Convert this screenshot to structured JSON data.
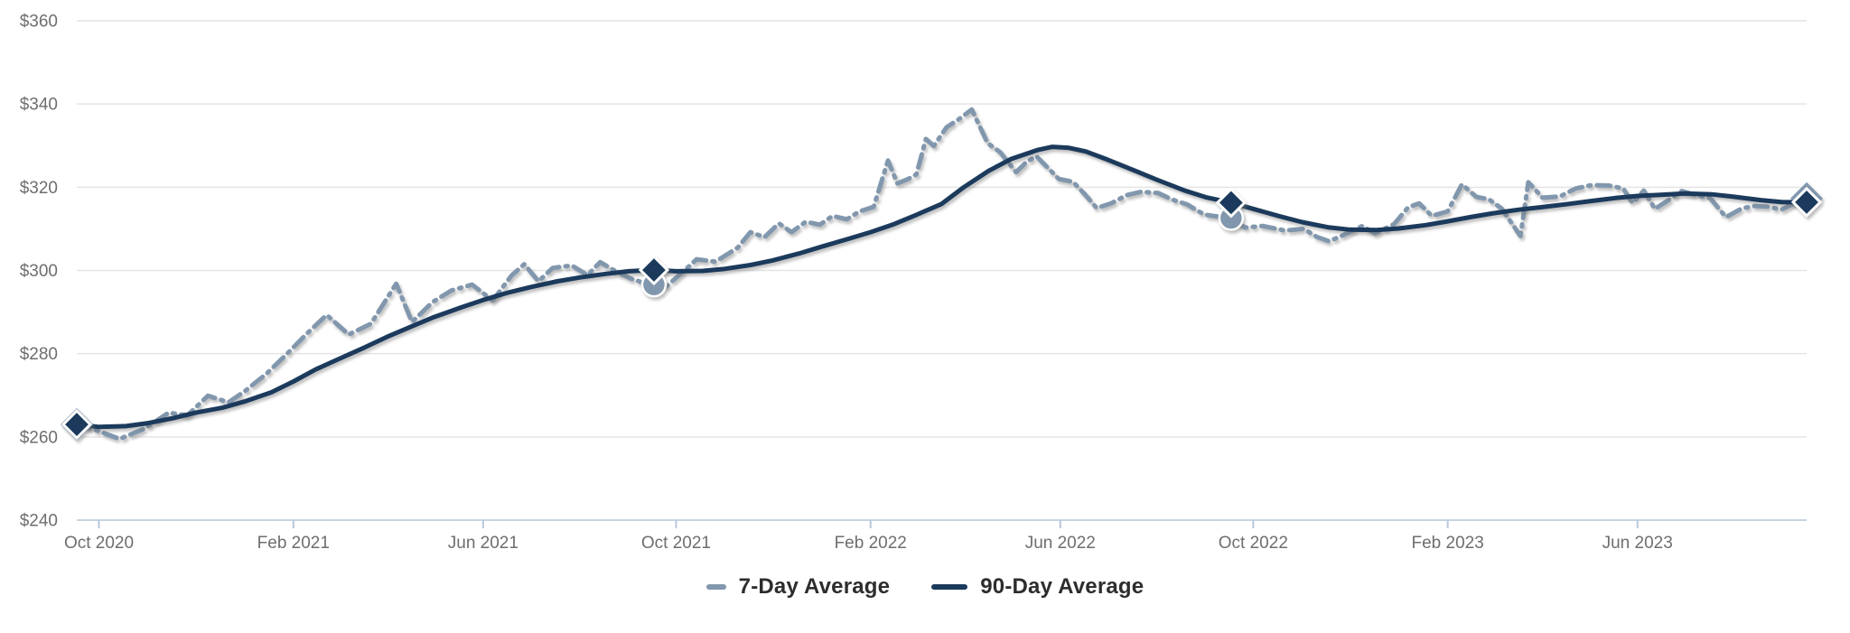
{
  "chart_data": {
    "type": "line",
    "title": "",
    "xlabel": "",
    "ylabel": "",
    "grid": "horizontal",
    "legend_position": "bottom-center",
    "y_axis": {
      "min": 240,
      "max": 360,
      "tick_step": 20,
      "tick_prefix": "$",
      "tick_labels": [
        "$240",
        "$260",
        "$280",
        "$300",
        "$320",
        "$340",
        "$360"
      ]
    },
    "x_axis": {
      "start_date": "2020-10-01",
      "end_date": "2023-09-30",
      "tick_dates": [
        "2020-10-15",
        "2021-02-15",
        "2021-06-15",
        "2021-10-15",
        "2022-02-15",
        "2022-06-15",
        "2022-10-15",
        "2023-02-15",
        "2023-06-15"
      ],
      "tick_labels": [
        "Oct 2020",
        "Feb 2021",
        "Jun 2021",
        "Oct 2021",
        "Feb 2022",
        "Jun 2022",
        "Oct 2022",
        "Feb 2023",
        "Jun 2023"
      ]
    },
    "series": [
      {
        "name": "7-Day Average",
        "style": "dashed",
        "color": "#8197AD",
        "points": [
          [
            "2020-10-01",
            263
          ],
          [
            "2020-10-14",
            261.5
          ],
          [
            "2020-10-28",
            259.5
          ],
          [
            "2020-11-13",
            262
          ],
          [
            "2020-11-28",
            265.8
          ],
          [
            "2020-12-10",
            265.2
          ],
          [
            "2020-12-23",
            269.9
          ],
          [
            "2021-01-05",
            268.3
          ],
          [
            "2021-01-16",
            271.2
          ],
          [
            "2021-01-29",
            275.2
          ],
          [
            "2021-02-10",
            279.6
          ],
          [
            "2021-02-24",
            285
          ],
          [
            "2021-03-08",
            289.3
          ],
          [
            "2021-03-22",
            284.6
          ],
          [
            "2021-04-05",
            287.2
          ],
          [
            "2021-04-21",
            296.8
          ],
          [
            "2021-05-01",
            287.6
          ],
          [
            "2021-05-14",
            292.4
          ],
          [
            "2021-05-26",
            295.2
          ],
          [
            "2021-06-08",
            296.6
          ],
          [
            "2021-06-21",
            292.8
          ],
          [
            "2021-07-03",
            298.8
          ],
          [
            "2021-07-11",
            301.5
          ],
          [
            "2021-07-20",
            297.4
          ],
          [
            "2021-07-29",
            300.6
          ],
          [
            "2021-08-10",
            301.2
          ],
          [
            "2021-08-20",
            298.9
          ],
          [
            "2021-08-28",
            302
          ],
          [
            "2021-09-05",
            300.2
          ],
          [
            "2021-09-16",
            298.1
          ],
          [
            "2021-09-28",
            296.6
          ],
          [
            "2021-10-09",
            296.2
          ],
          [
            "2021-10-20",
            299.9
          ],
          [
            "2021-10-28",
            302.7
          ],
          [
            "2021-11-09",
            302.1
          ],
          [
            "2021-11-23",
            305.5
          ],
          [
            "2021-12-01",
            309.2
          ],
          [
            "2021-12-10",
            308
          ],
          [
            "2021-12-19",
            311.3
          ],
          [
            "2021-12-27",
            309.2
          ],
          [
            "2022-01-05",
            311.7
          ],
          [
            "2022-01-14",
            311
          ],
          [
            "2022-01-22",
            313.1
          ],
          [
            "2022-01-31",
            312.3
          ],
          [
            "2022-02-08",
            314.2
          ],
          [
            "2022-02-17",
            315.3
          ],
          [
            "2022-02-26",
            326.4
          ],
          [
            "2022-03-04",
            320.9
          ],
          [
            "2022-03-11",
            322
          ],
          [
            "2022-03-16",
            323.1
          ],
          [
            "2022-03-22",
            331.6
          ],
          [
            "2022-03-27",
            329.9
          ],
          [
            "2022-04-04",
            334.4
          ],
          [
            "2022-04-12",
            336.4
          ],
          [
            "2022-04-20",
            338.7
          ],
          [
            "2022-04-30",
            330.6
          ],
          [
            "2022-05-08",
            328.4
          ],
          [
            "2022-05-18",
            323.6
          ],
          [
            "2022-05-25",
            326.2
          ],
          [
            "2022-05-31",
            327.4
          ],
          [
            "2022-06-14",
            322
          ],
          [
            "2022-06-23",
            321.3
          ],
          [
            "2022-07-01",
            318.1
          ],
          [
            "2022-07-08",
            315
          ],
          [
            "2022-07-17",
            316.1
          ],
          [
            "2022-07-27",
            318.1
          ],
          [
            "2022-08-05",
            318.9
          ],
          [
            "2022-08-16",
            318.6
          ],
          [
            "2022-08-25",
            317
          ],
          [
            "2022-09-03",
            315.9
          ],
          [
            "2022-09-14",
            313.4
          ],
          [
            "2022-09-29",
            312.6
          ],
          [
            "2022-10-10",
            310.3
          ],
          [
            "2022-10-21",
            310.7
          ],
          [
            "2022-11-04",
            309.6
          ],
          [
            "2022-11-16",
            310
          ],
          [
            "2022-11-24",
            308.1
          ],
          [
            "2022-12-02",
            307
          ],
          [
            "2022-12-11",
            308.5
          ],
          [
            "2022-12-23",
            310.7
          ],
          [
            "2022-12-31",
            308.9
          ],
          [
            "2023-01-12",
            311.1
          ],
          [
            "2023-01-21",
            315.2
          ],
          [
            "2023-01-28",
            316.1
          ],
          [
            "2023-02-05",
            313.1
          ],
          [
            "2023-02-15",
            314.2
          ],
          [
            "2023-02-24",
            320.7
          ],
          [
            "2023-03-05",
            317.7
          ],
          [
            "2023-03-13",
            317.1
          ],
          [
            "2023-03-21",
            314.9
          ],
          [
            "2023-04-02",
            308.3
          ],
          [
            "2023-04-07",
            321.2
          ],
          [
            "2023-04-16",
            317.5
          ],
          [
            "2023-04-27",
            317.8
          ],
          [
            "2023-05-07",
            319.7
          ],
          [
            "2023-05-17",
            320.5
          ],
          [
            "2023-05-28",
            320.4
          ],
          [
            "2023-06-06",
            319.7
          ],
          [
            "2023-06-12",
            316.2
          ],
          [
            "2023-06-19",
            319.2
          ],
          [
            "2023-06-26",
            314.8
          ],
          [
            "2023-07-05",
            317
          ],
          [
            "2023-07-13",
            319.1
          ],
          [
            "2023-07-22",
            318.1
          ],
          [
            "2023-07-31",
            317.4
          ],
          [
            "2023-08-10",
            312.8
          ],
          [
            "2023-08-20",
            314.9
          ],
          [
            "2023-08-28",
            315.5
          ],
          [
            "2023-09-06",
            315.3
          ],
          [
            "2023-09-14",
            314.6
          ],
          [
            "2023-09-23",
            316.3
          ],
          [
            "2023-09-30",
            317.3
          ]
        ]
      },
      {
        "name": "90-Day Average",
        "style": "solid",
        "color": "#1B3A5C",
        "points": [
          [
            "2020-10-01",
            263
          ],
          [
            "2020-10-15",
            262.4
          ],
          [
            "2020-11-01",
            262.6
          ],
          [
            "2020-11-15",
            263.3
          ],
          [
            "2020-12-01",
            264.5
          ],
          [
            "2020-12-15",
            265.8
          ],
          [
            "2021-01-01",
            267
          ],
          [
            "2021-01-15",
            268.5
          ],
          [
            "2021-02-01",
            270.7
          ],
          [
            "2021-02-15",
            273.3
          ],
          [
            "2021-03-01",
            276.2
          ],
          [
            "2021-03-15",
            278.6
          ],
          [
            "2021-04-01",
            281.5
          ],
          [
            "2021-04-15",
            284
          ],
          [
            "2021-05-01",
            286.6
          ],
          [
            "2021-05-15",
            288.8
          ],
          [
            "2021-06-01",
            291.1
          ],
          [
            "2021-06-15",
            292.9
          ],
          [
            "2021-07-01",
            294.7
          ],
          [
            "2021-07-15",
            296
          ],
          [
            "2021-08-01",
            297.4
          ],
          [
            "2021-08-15",
            298.3
          ],
          [
            "2021-09-01",
            299.2
          ],
          [
            "2021-09-15",
            299.8
          ],
          [
            "2021-10-01",
            300.1
          ],
          [
            "2021-10-15",
            299.8
          ],
          [
            "2021-11-01",
            299.9
          ],
          [
            "2021-11-15",
            300.4
          ],
          [
            "2021-12-01",
            301.3
          ],
          [
            "2021-12-15",
            302.4
          ],
          [
            "2022-01-01",
            304.1
          ],
          [
            "2022-01-15",
            305.7
          ],
          [
            "2022-02-01",
            307.6
          ],
          [
            "2022-02-15",
            309.2
          ],
          [
            "2022-03-01",
            311
          ],
          [
            "2022-03-15",
            313.2
          ],
          [
            "2022-04-01",
            316
          ],
          [
            "2022-04-15",
            320
          ],
          [
            "2022-05-01",
            324
          ],
          [
            "2022-05-15",
            326.8
          ],
          [
            "2022-06-01",
            329
          ],
          [
            "2022-06-10",
            329.7
          ],
          [
            "2022-06-20",
            329.5
          ],
          [
            "2022-07-01",
            328.6
          ],
          [
            "2022-07-15",
            326.6
          ],
          [
            "2022-08-01",
            324
          ],
          [
            "2022-08-15",
            321.8
          ],
          [
            "2022-09-01",
            319.3
          ],
          [
            "2022-09-15",
            317.6
          ],
          [
            "2022-10-01",
            316.3
          ],
          [
            "2022-10-15",
            314.8
          ],
          [
            "2022-11-01",
            313
          ],
          [
            "2022-11-15",
            311.6
          ],
          [
            "2022-12-01",
            310.4
          ],
          [
            "2022-12-15",
            309.8
          ],
          [
            "2023-01-01",
            309.7
          ],
          [
            "2023-01-15",
            310.1
          ],
          [
            "2023-02-01",
            310.9
          ],
          [
            "2023-02-15",
            311.8
          ],
          [
            "2023-03-01",
            312.8
          ],
          [
            "2023-03-15",
            313.7
          ],
          [
            "2023-04-01",
            314.6
          ],
          [
            "2023-04-15",
            315.2
          ],
          [
            "2023-05-01",
            315.9
          ],
          [
            "2023-05-15",
            316.6
          ],
          [
            "2023-06-01",
            317.4
          ],
          [
            "2023-06-15",
            317.9
          ],
          [
            "2023-07-01",
            318.2
          ],
          [
            "2023-07-15",
            318.5
          ],
          [
            "2023-08-01",
            318.3
          ],
          [
            "2023-08-15",
            317.7
          ],
          [
            "2023-09-01",
            316.9
          ],
          [
            "2023-09-15",
            316.4
          ],
          [
            "2023-09-30",
            316.4
          ]
        ]
      }
    ],
    "markers": [
      {
        "date": "2020-10-01",
        "solid_value": 263,
        "dashed_value": 263,
        "dashed_shape": "diamond"
      },
      {
        "date": "2021-10-01",
        "solid_value": 300.1,
        "dashed_value": 296.6,
        "dashed_shape": "circle"
      },
      {
        "date": "2022-10-01",
        "solid_value": 316.3,
        "dashed_value": 312.6,
        "dashed_shape": "circle"
      },
      {
        "date": "2023-09-30",
        "solid_value": 316.4,
        "dashed_value": 317.3,
        "dashed_shape": "diamond"
      }
    ],
    "legend": [
      "7-Day Average",
      "90-Day Average"
    ]
  },
  "style_colors": {
    "gridline": "#e4e4e4",
    "axis_line": "#c6d4e2",
    "tick_mark": "#b9c9da",
    "axis_text": "#6e6e6e",
    "legend_text": "#2d2d2d",
    "background": "#ffffff"
  }
}
